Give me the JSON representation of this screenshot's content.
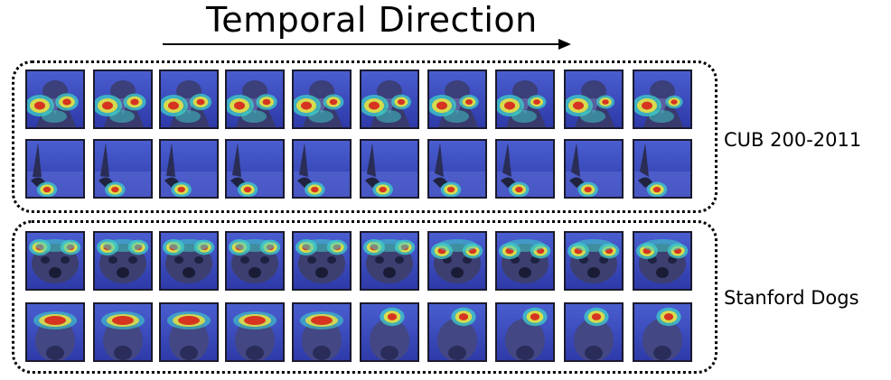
{
  "title": "Temporal Direction",
  "groups": [
    {
      "label": "CUB 200-2011",
      "subject": "bird",
      "rows": 2,
      "frames_per_row": 10
    },
    {
      "label": "Stanford Dogs",
      "subject": "dog",
      "rows": 2,
      "frames_per_row": 10
    }
  ],
  "colors": {
    "heat_low": "#2b3fbf",
    "heat_mid": "#3fd0c8",
    "heat_warm": "#f2e33a",
    "heat_high": "#d62b1e",
    "frame_border": "#1a1a2e"
  }
}
